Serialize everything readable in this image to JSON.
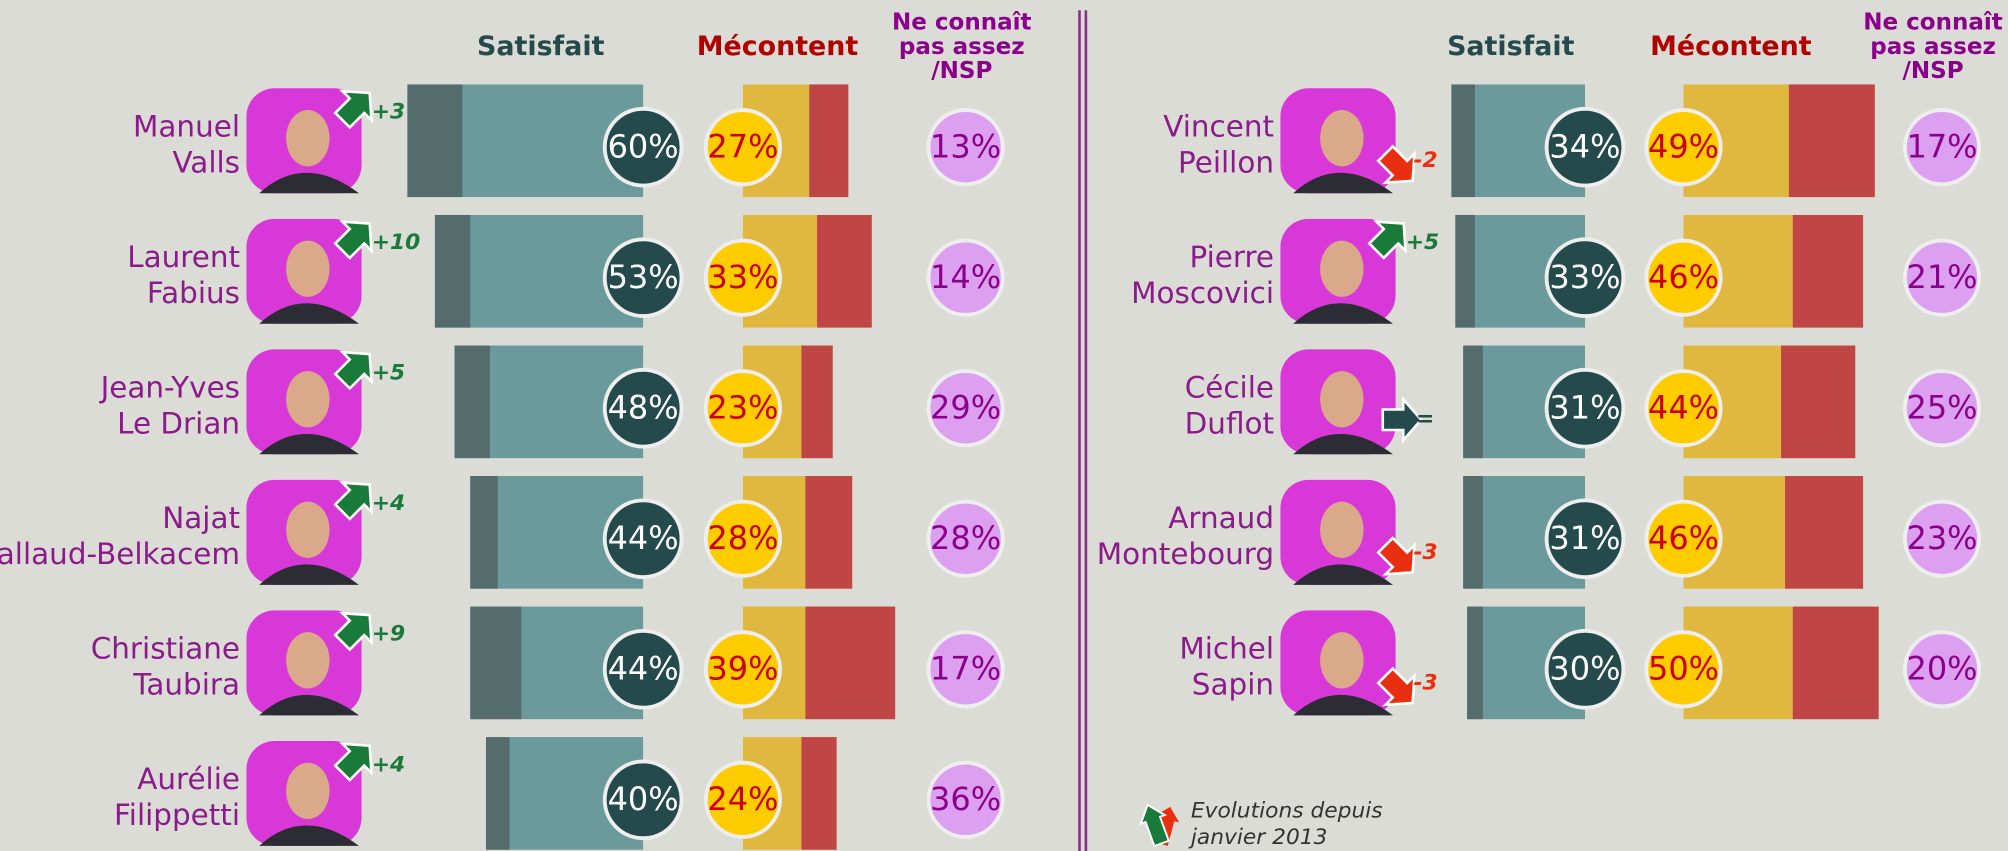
{
  "chart_data": {
    "type": "bar",
    "categories": [
      [
        "Manuel",
        "Valls"
      ],
      [
        "Laurent",
        "Fabius"
      ],
      [
        "Jean-Yves",
        "Le Drian"
      ],
      [
        "Najat",
        "Vallaud-Belkacem"
      ],
      [
        "Christiane",
        "Taubira"
      ],
      [
        "Aurélie",
        "Filippetti"
      ],
      [
        "Vincent",
        "Peillon"
      ],
      [
        "Pierre",
        "Moscovici"
      ],
      [
        "Cécile",
        "Duflot"
      ],
      [
        "Arnaud",
        "Montebourg"
      ],
      [
        "Michel",
        "Sapin"
      ]
    ],
    "series": [
      {
        "name": "Satisfait",
        "color": "#6b9a9c",
        "strong_color": "#546c6c",
        "values": [
          60,
          53,
          48,
          44,
          44,
          40,
          34,
          33,
          31,
          31,
          30
        ],
        "value_labels": [
          "60%",
          "53%",
          "48%",
          "44%",
          "44%",
          "40%",
          "34%",
          "33%",
          "31%",
          "31%",
          "30%"
        ],
        "strong": [
          14,
          9,
          9,
          7,
          13,
          6,
          6,
          5,
          5,
          5,
          4
        ]
      },
      {
        "name": "Mécontent",
        "color": "#e0b840",
        "strong_color": "#c04545",
        "values": [
          27,
          33,
          23,
          28,
          39,
          24,
          49,
          46,
          44,
          46,
          50
        ],
        "value_labels": [
          "27%",
          "33%",
          "23%",
          "28%",
          "39%",
          "24%",
          "49%",
          "46%",
          "44%",
          "46%",
          "50%"
        ],
        "strong": [
          10,
          14,
          8,
          12,
          23,
          9,
          22,
          18,
          19,
          20,
          22
        ]
      },
      {
        "name": [
          "Ne connaît",
          "pas assez",
          "/NSP"
        ],
        "color": "#dda0f0",
        "values": [
          13,
          14,
          29,
          28,
          17,
          36,
          17,
          21,
          25,
          23,
          20
        ],
        "value_labels": [
          "13%",
          "14%",
          "29%",
          "28%",
          "17%",
          "36%",
          "17%",
          "21%",
          "25%",
          "23%",
          "20%"
        ]
      }
    ],
    "evolution": {
      "values": [
        3,
        10,
        5,
        4,
        9,
        4,
        -2,
        5,
        0,
        -3,
        -3
      ],
      "value_labels": [
        "+3",
        "+10",
        "+5",
        "+4",
        "+9",
        "+4",
        "-2",
        "+5",
        "=",
        "-3",
        "-3"
      ]
    },
    "note": [
      "Evolutions depuis",
      "janvier 2013"
    ]
  }
}
